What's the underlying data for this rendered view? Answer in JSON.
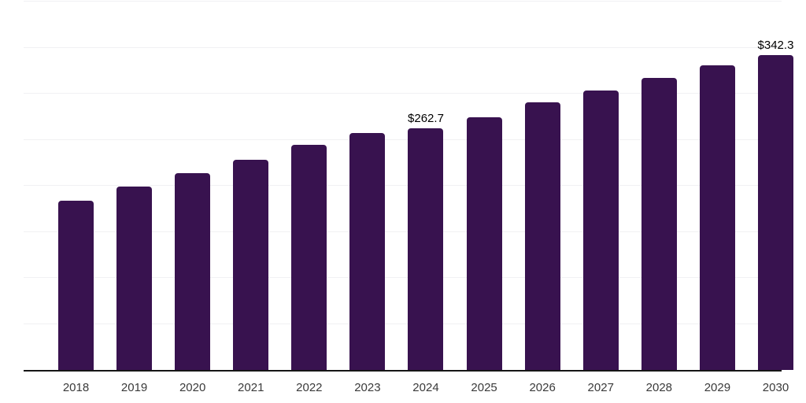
{
  "chart_data": {
    "type": "bar",
    "title": "",
    "xlabel": "",
    "ylabel": "",
    "legend": "none",
    "grid": "horizontal",
    "ylim": [
      0,
      400
    ],
    "gridline_step": 50,
    "y_axis_labels_visible": false,
    "categories": [
      "2018",
      "2019",
      "2020",
      "2021",
      "2022",
      "2023",
      "2024",
      "2025",
      "2026",
      "2027",
      "2028",
      "2029",
      "2030"
    ],
    "values": [
      184.0,
      198.9,
      214.1,
      228.3,
      244.1,
      257.0,
      262.7,
      274.2,
      290.5,
      303.4,
      317.1,
      330.5,
      342.3
    ],
    "data_labels": [
      {
        "category": "2024",
        "text": "$262.7"
      },
      {
        "category": "2030",
        "text": "$342.3"
      }
    ],
    "currency_prefix": "$",
    "colors": {
      "bar": "#38124f",
      "axis_line": "#161616",
      "gridline": "#f1f1f3",
      "x_tick_text": "#3a3a3a",
      "data_label_text": "#000000",
      "background": "#ffffff"
    }
  }
}
